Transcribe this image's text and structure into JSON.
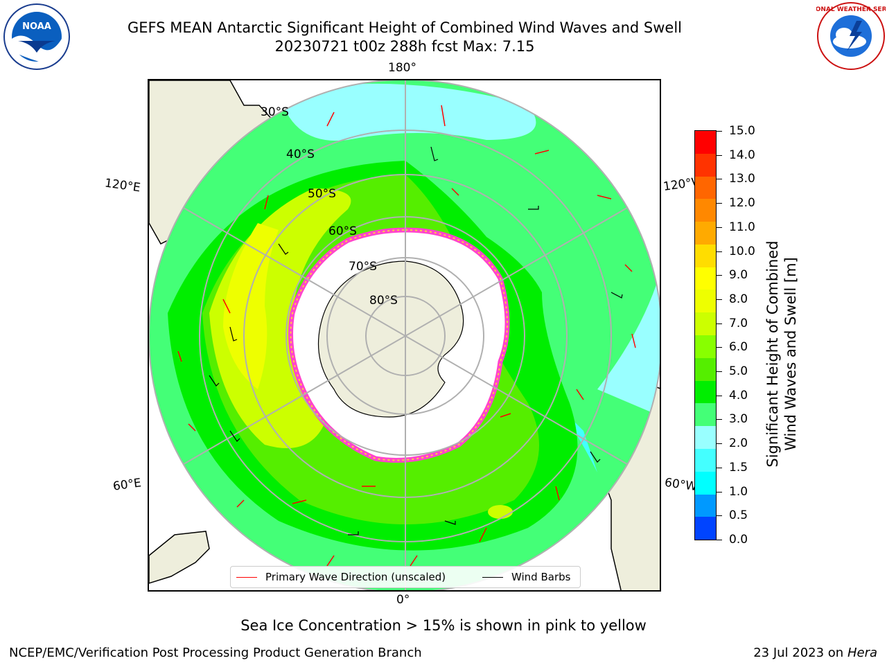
{
  "header": {
    "title_line1": "GEFS MEAN Antarctic Significant Height of Combined Wind Waves and Swell",
    "title_line2": "20230721 t00z 288h fcst   Max: 7.15"
  },
  "logos": {
    "left_icon": "noaa-logo",
    "left_text": "NOAA",
    "right_icon": "national-weather-service-logo",
    "right_text": "NATIONAL WEATHER SERVICE"
  },
  "map": {
    "longitude_labels": {
      "top": "180°",
      "bottom": "0°",
      "left_upper": "120°E",
      "left_lower": "60°E",
      "right_upper": "120°W",
      "right_lower": "60°W"
    },
    "latitude_labels": [
      "30°S",
      "40°S",
      "50°S",
      "60°S",
      "70°S",
      "80°S"
    ],
    "legend": {
      "wave_direction": "Primary Wave Direction (unscaled)",
      "wind_barbs": "Wind Barbs"
    },
    "colors": {
      "land": "#eeeedc",
      "ice_pink": "#ff44cc",
      "ice_yellow": "#ffcc44",
      "arrow": "#ff0000"
    }
  },
  "colorbar": {
    "label_line1": "Significant Height of Combined",
    "label_line2": "Wind Waves and Swell [m]",
    "ticks": [
      "15.0",
      "14.0",
      "13.0",
      "12.0",
      "11.0",
      "10.0",
      "9.0",
      "8.0",
      "7.0",
      "6.0",
      "5.0",
      "4.0",
      "3.0",
      "2.0",
      "1.5",
      "1.0",
      "0.5",
      "0.0"
    ],
    "colors": [
      "#ff0000",
      "#ff3300",
      "#ff6600",
      "#ff8800",
      "#ffaa00",
      "#ffdd00",
      "#ffff00",
      "#eeff00",
      "#ccff00",
      "#88ff00",
      "#55ee00",
      "#00ee00",
      "#44ff77",
      "#99ffff",
      "#44ffff",
      "#00ffff",
      "#0099ff",
      "#0044ff",
      "#0000ff"
    ]
  },
  "notes": {
    "sea_ice": "Sea Ice Concentration > 15% is shown in pink to yellow"
  },
  "footer": {
    "left": "NCEP/EMC/Verification Post Processing Product Generation Branch",
    "right_date": "23 Jul 2023 on ",
    "right_machine": "Hera"
  }
}
